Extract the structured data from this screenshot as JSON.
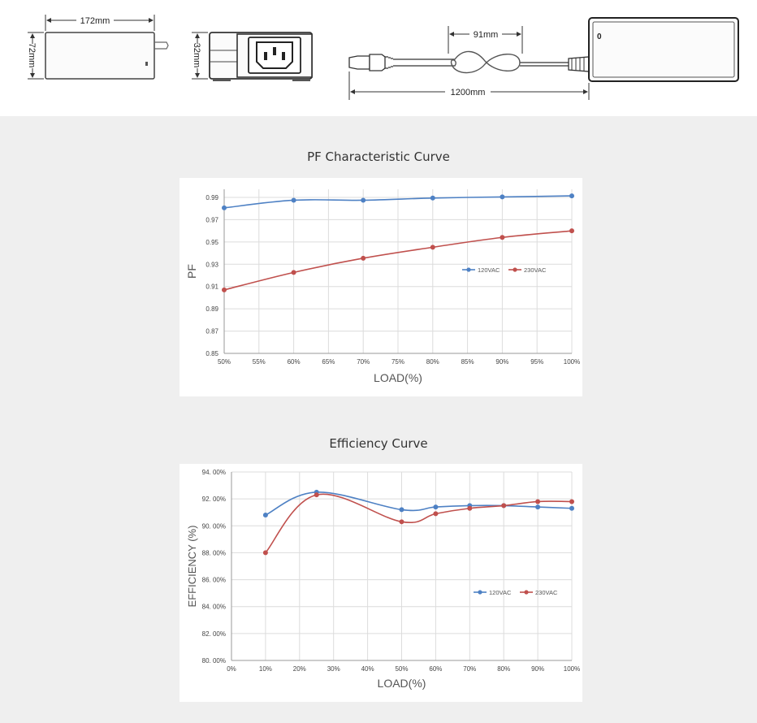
{
  "dimensions": {
    "front_width": "172mm",
    "front_height": "72mm",
    "side_height": "32mm",
    "loop_length": "91mm",
    "cable_length": "1200mm",
    "switch_mark": "0"
  },
  "colors": {
    "panel_bg": "#efefef",
    "series_120": "#4e81c4",
    "series_230": "#c0504d",
    "grid": "#dcdcdc"
  },
  "chart_data": [
    {
      "type": "line",
      "title": "PF Characteristic Curve",
      "xlabel": "LOAD(%)",
      "ylabel": "PF",
      "x_ticks": [
        "50%",
        "55%",
        "60%",
        "65%",
        "70%",
        "75%",
        "80%",
        "85%",
        "90%",
        "95%",
        "100%"
      ],
      "y_ticks": [
        "0.85",
        "0.87",
        "0.89",
        "0.91",
        "0.93",
        "0.95",
        "0.97",
        "0.99"
      ],
      "xlim": [
        50,
        100
      ],
      "ylim": [
        0.85,
        1.0
      ],
      "legend_position": "right-middle",
      "grid": true,
      "series": [
        {
          "name": "120VAC",
          "x": [
            50,
            60,
            70,
            80,
            90,
            100
          ],
          "values": [
            0.983,
            0.99,
            0.99,
            0.992,
            0.993,
            0.994
          ]
        },
        {
          "name": "230VAC",
          "x": [
            50,
            60,
            70,
            80,
            90,
            100
          ],
          "values": [
            0.908,
            0.924,
            0.937,
            0.947,
            0.956,
            0.962
          ]
        }
      ]
    },
    {
      "type": "line",
      "title": "Efficiency Curve",
      "xlabel": "LOAD(%)",
      "ylabel": "EFFICIENCY (%)",
      "x_ticks": [
        "0%",
        "10%",
        "20%",
        "30%",
        "40%",
        "50%",
        "60%",
        "70%",
        "80%",
        "90%",
        "100%"
      ],
      "y_ticks": [
        "80. 00%",
        "82. 00%",
        "84. 00%",
        "86. 00%",
        "88. 00%",
        "90. 00%",
        "92. 00%",
        "94. 00%"
      ],
      "xlim": [
        0,
        100
      ],
      "ylim": [
        80,
        94
      ],
      "legend_position": "right-middle",
      "grid": true,
      "series": [
        {
          "name": "120VAC",
          "x": [
            10,
            25,
            50,
            60,
            70,
            80,
            90,
            100
          ],
          "values": [
            90.8,
            92.5,
            91.2,
            91.4,
            91.5,
            91.5,
            91.4,
            91.3
          ]
        },
        {
          "name": "230VAC",
          "x": [
            10,
            25,
            50,
            60,
            70,
            80,
            90,
            100
          ],
          "values": [
            88.0,
            92.3,
            90.3,
            90.9,
            91.3,
            91.5,
            91.8,
            91.8
          ]
        }
      ]
    }
  ]
}
